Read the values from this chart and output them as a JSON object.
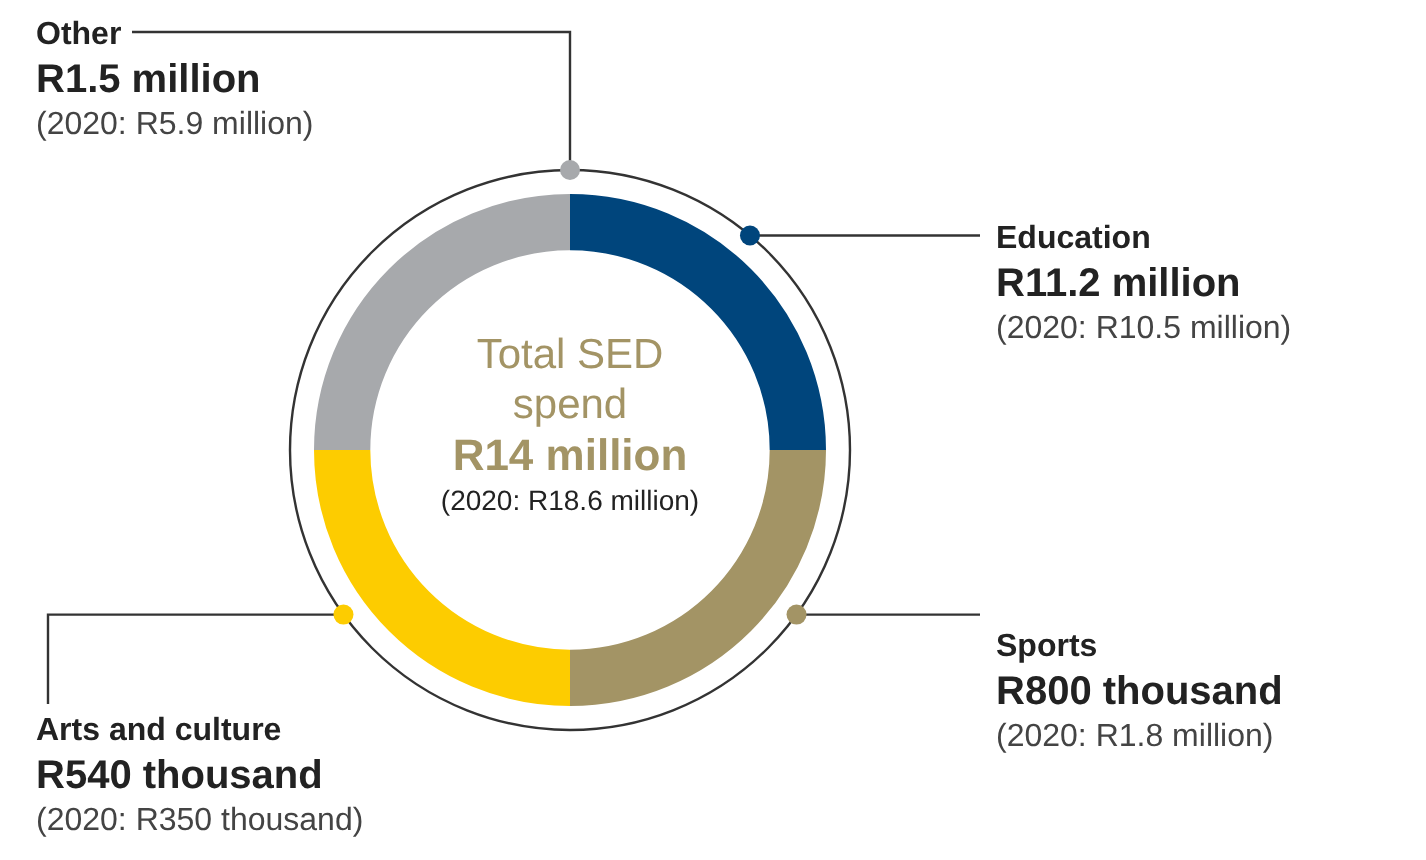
{
  "chart_data": {
    "type": "donut",
    "title": "Total SED spend",
    "subtitle": "R14 million",
    "categories": [
      "Education",
      "Sports",
      "Arts and culture",
      "Other"
    ],
    "values": [
      25,
      25,
      25,
      25
    ],
    "colors": [
      "#00457c",
      "#a39465",
      "#fdcc00",
      "#a7a9ac"
    ],
    "annotations": [
      {
        "text": "R11.2 million",
        "x": "Education"
      },
      {
        "text": "(2020: R10.5 million)",
        "x": "Education"
      },
      {
        "text": "R800 thousand",
        "x": "Sports"
      },
      {
        "text": "(2020: R1.8 million)",
        "x": "Sports"
      },
      {
        "text": "R540 thousand",
        "x": "Arts and culture"
      },
      {
        "text": "(2020: R350 thousand)",
        "x": "Arts and culture"
      },
      {
        "text": "R1.5 million",
        "x": "Other"
      },
      {
        "text": "(2020: R5.9 million)",
        "x": "Other"
      },
      "(2020: R18.6 million)"
    ],
    "legend": false
  }
}
